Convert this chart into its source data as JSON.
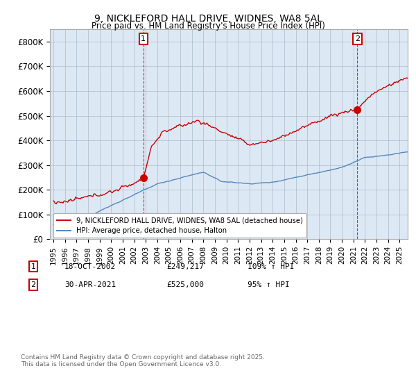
{
  "title": "9, NICKLEFORD HALL DRIVE, WIDNES, WA8 5AL",
  "subtitle": "Price paid vs. HM Land Registry's House Price Index (HPI)",
  "legend_label_red": "9, NICKLEFORD HALL DRIVE, WIDNES, WA8 5AL (detached house)",
  "legend_label_blue": "HPI: Average price, detached house, Halton",
  "annotation1_label": "1",
  "annotation1_date": "18-OCT-2002",
  "annotation1_price": "£249,217",
  "annotation1_hpi": "109% ↑ HPI",
  "annotation2_label": "2",
  "annotation2_date": "30-APR-2021",
  "annotation2_price": "£525,000",
  "annotation2_hpi": "95% ↑ HPI",
  "footer": "Contains HM Land Registry data © Crown copyright and database right 2025.\nThis data is licensed under the Open Government Licence v3.0.",
  "ylim": [
    0,
    850000
  ],
  "yticks": [
    0,
    100000,
    200000,
    300000,
    400000,
    500000,
    600000,
    700000,
    800000
  ],
  "ytick_labels": [
    "£0",
    "£100K",
    "£200K",
    "£300K",
    "£400K",
    "£500K",
    "£600K",
    "£700K",
    "£800K"
  ],
  "red_color": "#cc0000",
  "blue_color": "#5588bb",
  "bg_fill_color": "#dde8f5",
  "grid_color": "#aabbcc",
  "background_color": "#ffffff",
  "sale1_x": 2002.8,
  "sale1_y": 249217,
  "sale2_x": 2021.33,
  "sale2_y": 525000,
  "vline1_x": 2002.8,
  "vline2_x": 2021.33,
  "xmin": 1995.0,
  "xmax": 2025.7
}
